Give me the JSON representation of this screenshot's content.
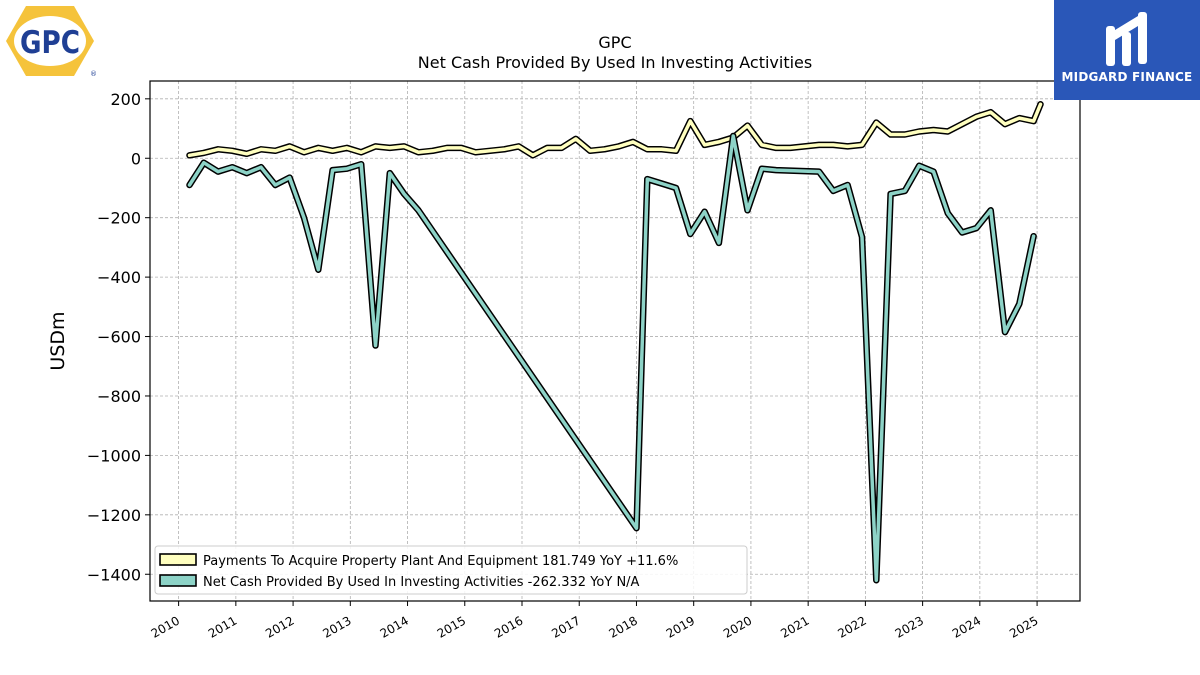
{
  "brand": {
    "left_logo_text": "GPC",
    "right_logo_text": "MIDGARD FINANCE",
    "gpc_yellow": "#f5c33b",
    "gpc_blue": "#1f3f94",
    "midgard_blue": "#2a57b8"
  },
  "chart_data": {
    "type": "line",
    "title": "GPC",
    "subtitle": "Net Cash Provided By Used In Investing Activities",
    "xlabel": "",
    "ylabel": "USDm",
    "xlim": [
      2009.5,
      2025.75
    ],
    "ylim": [
      -1490,
      260
    ],
    "yticks": [
      200,
      0,
      -200,
      -400,
      -600,
      -800,
      -1000,
      -1200,
      -1400
    ],
    "ytick_labels": [
      "200",
      "0",
      "−200",
      "−400",
      "−600",
      "−800",
      "−1000",
      "−1200",
      "−1400"
    ],
    "xticks": [
      2010,
      2011,
      2012,
      2013,
      2014,
      2015,
      2016,
      2017,
      2018,
      2019,
      2020,
      2021,
      2022,
      2023,
      2024,
      2025
    ],
    "xtick_labels": [
      "2010",
      "2011",
      "2012",
      "2013",
      "2014",
      "2015",
      "2016",
      "2017",
      "2018",
      "2019",
      "2020",
      "2021",
      "2022",
      "2023",
      "2024",
      "2025"
    ],
    "grid": true,
    "legend_position": "lower-left",
    "series": [
      {
        "name": "Payments To Acquire Property Plant And Equipment  181.749 YoY +11.6%",
        "color": "#ffffbf",
        "x": [
          2010.19,
          2010.44,
          2010.69,
          2010.94,
          2011.19,
          2011.44,
          2011.69,
          2011.94,
          2012.19,
          2012.44,
          2012.69,
          2012.94,
          2013.19,
          2013.44,
          2013.69,
          2013.94,
          2014.19,
          2014.44,
          2014.69,
          2014.94,
          2015.19,
          2015.44,
          2015.69,
          2015.94,
          2016.19,
          2016.44,
          2016.69,
          2016.94,
          2017.19,
          2017.44,
          2017.69,
          2017.94,
          2018.19,
          2018.44,
          2018.69,
          2018.94,
          2019.19,
          2019.44,
          2019.69,
          2019.94,
          2020.19,
          2020.44,
          2020.69,
          2020.94,
          2021.19,
          2021.44,
          2021.69,
          2021.94,
          2022.19,
          2022.44,
          2022.69,
          2022.94,
          2023.19,
          2023.44,
          2023.69,
          2023.94,
          2024.19,
          2024.44,
          2024.69,
          2024.94
        ],
        "values": [
          10,
          18,
          30,
          25,
          15,
          30,
          25,
          40,
          20,
          35,
          25,
          35,
          20,
          40,
          35,
          40,
          20,
          25,
          35,
          35,
          20,
          25,
          30,
          40,
          10,
          35,
          35,
          65,
          25,
          30,
          40,
          55,
          30,
          30,
          25,
          125,
          45,
          55,
          70,
          110,
          45,
          35,
          35,
          40,
          45,
          45,
          40,
          45,
          120,
          80,
          80,
          90,
          95,
          90,
          115,
          140,
          155,
          115,
          135,
          125
        ],
        "values_last_extra": [
          181.749
        ]
      },
      {
        "name": "Net Cash Provided By Used In Investing Activities  -262.332 YoY N/A",
        "color": "#8dd3c7",
        "x": [
          2010.19,
          2010.44,
          2010.69,
          2010.94,
          2011.19,
          2011.44,
          2011.69,
          2011.94,
          2012.19,
          2012.44,
          2012.69,
          2012.94,
          2013.19,
          2013.44,
          2013.69,
          2013.94,
          2014.19,
          2018.0,
          2018.19,
          2018.44,
          2018.69,
          2018.94,
          2019.19,
          2019.44,
          2019.69,
          2019.94,
          2020.19,
          2020.44,
          2021.19,
          2021.44,
          2021.69,
          2021.94,
          2022.19,
          2022.44,
          2022.69,
          2022.94,
          2023.19,
          2023.44,
          2023.69,
          2023.94,
          2024.19,
          2024.44,
          2024.69,
          2024.94
        ],
        "values": [
          -90,
          -15,
          -45,
          -30,
          -50,
          -30,
          -90,
          -65,
          -200,
          -375,
          -40,
          -35,
          -20,
          -630,
          -50,
          -120,
          -175,
          -1245,
          -70,
          -85,
          -100,
          -255,
          -180,
          -285,
          75,
          -175,
          -35,
          -40,
          -45,
          -110,
          -90,
          -265,
          -1420,
          -120,
          -110,
          -25,
          -45,
          -185,
          -250,
          -235,
          -175,
          -585,
          -490,
          -262.332
        ]
      }
    ]
  }
}
